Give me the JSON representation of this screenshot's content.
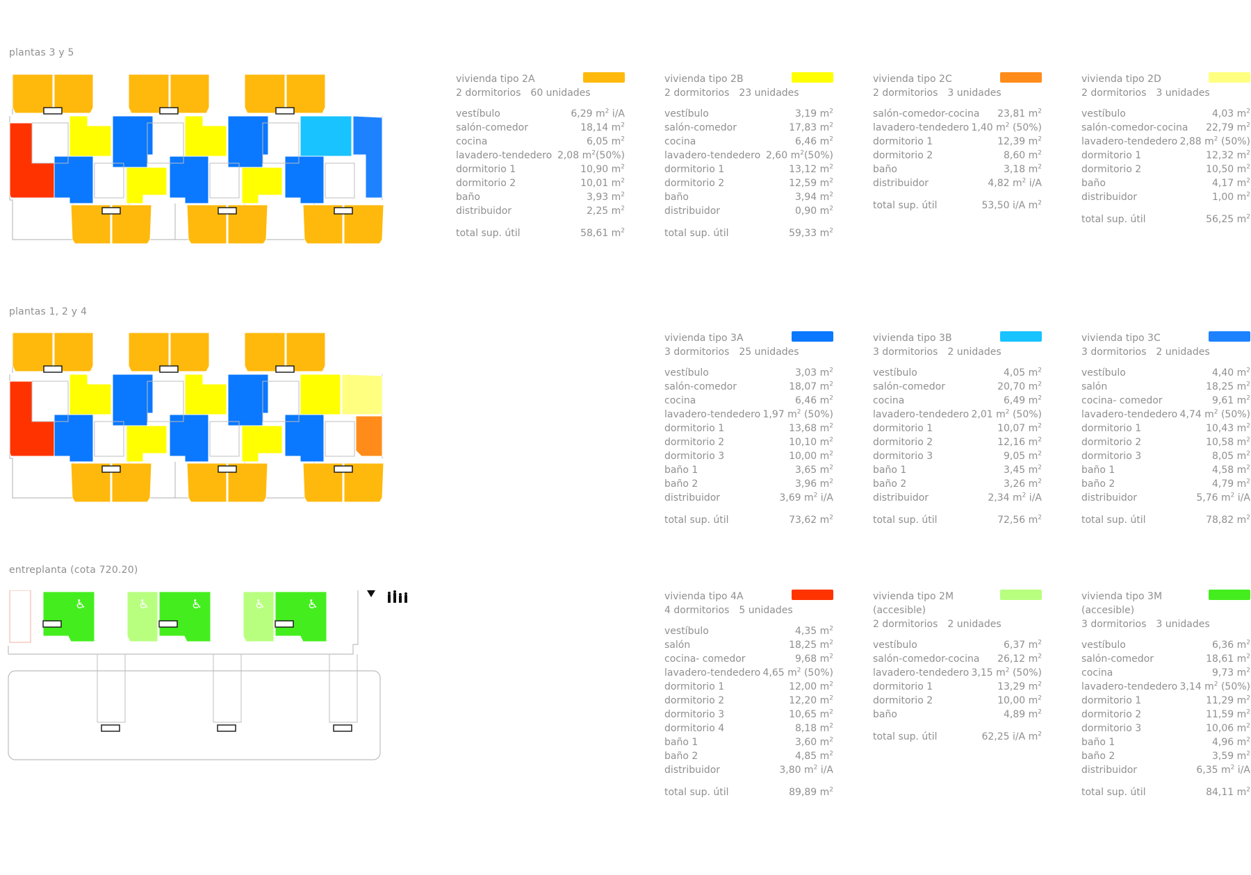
{
  "colors": {
    "type_2A": "#FFB90D",
    "type_2B": "#FFFF00",
    "type_2C": "#FF8C1A",
    "type_2D": "#FFFF80",
    "type_3A": "#0A78FF",
    "type_3B": "#19C3FF",
    "type_3C": "#1E82FF",
    "type_4A": "#FF3300",
    "type_2M": "#B8FF80",
    "type_3M": "#44EE1E",
    "outline": "#bdbdbd"
  },
  "icons": [
    "wheelchair-icon",
    "north-arrow-icon",
    "people-scale-icon"
  ],
  "floors": [
    {
      "label": "plantas 3 y 5"
    },
    {
      "label": "plantas 1, 2 y 4"
    },
    {
      "label": "entreplanta (cota 720.20)"
    }
  ],
  "units": [
    {
      "title": "vivienda tipo 2A",
      "subtitle": "",
      "bedrooms": "2 dormitorios",
      "count": "60 unidades",
      "color": "#FFB90D",
      "rooms": [
        {
          "name": "vestíbulo",
          "value": "6,29",
          "suffix": " i/A"
        },
        {
          "name": "salón-comedor",
          "value": "18,14",
          "suffix": ""
        },
        {
          "name": "cocina",
          "value": "6,05",
          "suffix": ""
        },
        {
          "name": "lavadero-tendedero",
          "value": "2,08",
          "suffix": "(50%)"
        },
        {
          "name": "dormitorio 1",
          "value": "10,90",
          "suffix": ""
        },
        {
          "name": "dormitorio 2",
          "value": "10,01",
          "suffix": ""
        },
        {
          "name": "baño",
          "value": "3,93",
          "suffix": ""
        },
        {
          "name": "distribuidor",
          "value": "2,25",
          "suffix": ""
        }
      ],
      "total_label": "total sup. útil",
      "total": "58,61"
    },
    {
      "title": "vivienda tipo 2B",
      "subtitle": "",
      "bedrooms": "2 dormitorios",
      "count": "23 unidades",
      "color": "#FFFF00",
      "rooms": [
        {
          "name": "vestíbulo",
          "value": "3,19",
          "suffix": ""
        },
        {
          "name": "salón-comedor",
          "value": "17,83",
          "suffix": ""
        },
        {
          "name": "cocina",
          "value": "6,46",
          "suffix": ""
        },
        {
          "name": "lavadero-tendedero",
          "value": "2,60",
          "suffix": "(50%)"
        },
        {
          "name": "dormitorio 1",
          "value": "13,12",
          "suffix": ""
        },
        {
          "name": "dormitorio 2",
          "value": "12,59",
          "suffix": ""
        },
        {
          "name": "baño",
          "value": "3,94",
          "suffix": ""
        },
        {
          "name": "distribuidor",
          "value": "0,90",
          "suffix": ""
        }
      ],
      "total_label": "total sup. útil",
      "total": "59,33"
    },
    {
      "title": "vivienda tipo 2C",
      "subtitle": "",
      "bedrooms": "2 dormitorios",
      "count": "3 unidades",
      "color": "#FF8C1A",
      "rooms": [
        {
          "name": "salón-comedor-cocina",
          "value": "23,81",
          "suffix": ""
        },
        {
          "name": "lavadero-tendedero",
          "value": "1,40",
          "suffix": " (50%)"
        },
        {
          "name": "dormitorio 1",
          "value": "12,39",
          "suffix": ""
        },
        {
          "name": "dormitorio 2",
          "value": "8,60",
          "suffix": ""
        },
        {
          "name": "baño",
          "value": "3,18",
          "suffix": ""
        },
        {
          "name": "distribuidor",
          "value": "4,82",
          "suffix": " i/A"
        }
      ],
      "total_label": "total sup. útil",
      "total": "53,50 i/A"
    },
    {
      "title": "vivienda tipo 2D",
      "subtitle": "",
      "bedrooms": "2 dormitorios",
      "count": "3 unidades",
      "color": "#FFFF80",
      "rooms": [
        {
          "name": "vestíbulo",
          "value": "4,03",
          "suffix": ""
        },
        {
          "name": "salón-comedor-cocina",
          "value": "22,79",
          "suffix": ""
        },
        {
          "name": "lavadero-tendedero",
          "value": "2,88",
          "suffix": " (50%)"
        },
        {
          "name": "dormitorio 1",
          "value": "12,32",
          "suffix": ""
        },
        {
          "name": "dormitorio 2",
          "value": "10,50",
          "suffix": ""
        },
        {
          "name": "baño",
          "value": "4,17",
          "suffix": ""
        },
        {
          "name": "distribuidor",
          "value": "1,00",
          "suffix": ""
        }
      ],
      "total_label": "total sup. útil",
      "total": "56,25"
    },
    {
      "title": "vivienda tipo 3A",
      "subtitle": "",
      "bedrooms": "3 dormitorios",
      "count": "25 unidades",
      "color": "#0A78FF",
      "rooms": [
        {
          "name": "vestíbulo",
          "value": "3,03",
          "suffix": ""
        },
        {
          "name": "salón-comedor",
          "value": "18,07",
          "suffix": ""
        },
        {
          "name": "cocina",
          "value": "6,46",
          "suffix": ""
        },
        {
          "name": "lavadero-tendedero",
          "value": "1,97",
          "suffix": " (50%)"
        },
        {
          "name": "dormitorio 1",
          "value": "13,68",
          "suffix": ""
        },
        {
          "name": "dormitorio 2",
          "value": "10,10",
          "suffix": ""
        },
        {
          "name": "dormitorio 3",
          "value": "10,00",
          "suffix": ""
        },
        {
          "name": "baño 1",
          "value": "3,65",
          "suffix": ""
        },
        {
          "name": "baño 2",
          "value": "3,96",
          "suffix": ""
        },
        {
          "name": "distribuidor",
          "value": "3,69",
          "suffix": " i/A"
        }
      ],
      "total_label": "total sup. útil",
      "total": "73,62"
    },
    {
      "title": "vivienda tipo 3B",
      "subtitle": "",
      "bedrooms": "3 dormitorios",
      "count": "2 unidades",
      "color": "#19C3FF",
      "rooms": [
        {
          "name": "vestíbulo",
          "value": "4,05",
          "suffix": ""
        },
        {
          "name": "salón-comedor",
          "value": "20,70",
          "suffix": ""
        },
        {
          "name": "cocina",
          "value": "6,49",
          "suffix": ""
        },
        {
          "name": "lavadero-tendedero",
          "value": "2,01",
          "suffix": " (50%)"
        },
        {
          "name": "dormitorio 1",
          "value": "10,07",
          "suffix": ""
        },
        {
          "name": "dormitorio 2",
          "value": "12,16",
          "suffix": ""
        },
        {
          "name": "dormitorio 3",
          "value": "9,05",
          "suffix": ""
        },
        {
          "name": "baño 1",
          "value": "3,45",
          "suffix": ""
        },
        {
          "name": "baño 2",
          "value": "3,26",
          "suffix": ""
        },
        {
          "name": "distribuidor",
          "value": "2,34",
          "suffix": " i/A"
        }
      ],
      "total_label": "total sup. útil",
      "total": "72,56"
    },
    {
      "title": "vivienda tipo 3C",
      "subtitle": "",
      "bedrooms": "3 dormitorios",
      "count": "2 unidades",
      "color": "#1E82FF",
      "rooms": [
        {
          "name": "vestíbulo",
          "value": "4,40",
          "suffix": ""
        },
        {
          "name": "salón",
          "value": "18,25",
          "suffix": ""
        },
        {
          "name": "cocina- comedor",
          "value": "9,61",
          "suffix": ""
        },
        {
          "name": "lavadero-tendedero",
          "value": "4,74",
          "suffix": " (50%)"
        },
        {
          "name": "dormitorio 1",
          "value": "10,43",
          "suffix": ""
        },
        {
          "name": "dormitorio 2",
          "value": "10,58",
          "suffix": ""
        },
        {
          "name": "dormitorio 3",
          "value": "8,05",
          "suffix": ""
        },
        {
          "name": "baño 1",
          "value": "4,58",
          "suffix": ""
        },
        {
          "name": "baño 2",
          "value": "4,79",
          "suffix": ""
        },
        {
          "name": "distribuidor",
          "value": "5,76",
          "suffix": " i/A"
        }
      ],
      "total_label": "total sup. útil",
      "total": "78,82"
    },
    {
      "title": "vivienda tipo 4A",
      "subtitle": "",
      "bedrooms": "4 dormitorios",
      "count": "5 unidades",
      "color": "#FF3300",
      "rooms": [
        {
          "name": "vestíbulo",
          "value": "4,35",
          "suffix": ""
        },
        {
          "name": "salón",
          "value": "18,25",
          "suffix": ""
        },
        {
          "name": "cocina- comedor",
          "value": "9,68",
          "suffix": ""
        },
        {
          "name": "lavadero-tendedero",
          "value": "4,65",
          "suffix": " (50%)"
        },
        {
          "name": "dormitorio 1",
          "value": "12,00",
          "suffix": ""
        },
        {
          "name": "dormitorio 2",
          "value": "12,20",
          "suffix": ""
        },
        {
          "name": "dormitorio 3",
          "value": "10,65",
          "suffix": ""
        },
        {
          "name": "dormitorio 4",
          "value": "8,18",
          "suffix": ""
        },
        {
          "name": "baño 1",
          "value": "3,60",
          "suffix": ""
        },
        {
          "name": "baño 2",
          "value": "4,85",
          "suffix": ""
        },
        {
          "name": "distribuidor",
          "value": "3,80",
          "suffix": " i/A"
        }
      ],
      "total_label": "total sup. útil",
      "total": "89,89"
    },
    {
      "title": "vivienda tipo 2M",
      "subtitle": "(accesible)",
      "bedrooms": "2 dormitorios",
      "count": "2 unidades",
      "color": "#B8FF80",
      "rooms": [
        {
          "name": "vestíbulo",
          "value": "6,37",
          "suffix": ""
        },
        {
          "name": "salón-comedor-cocina",
          "value": "26,12",
          "suffix": ""
        },
        {
          "name": "lavadero-tendedero",
          "value": "3,15",
          "suffix": " (50%)"
        },
        {
          "name": "dormitorio 1",
          "value": "13,29",
          "suffix": ""
        },
        {
          "name": "dormitorio 2",
          "value": "10,00",
          "suffix": ""
        },
        {
          "name": "baño",
          "value": "4,89",
          "suffix": ""
        }
      ],
      "total_label": "total sup. útil",
      "total": "62,25 i/A"
    },
    {
      "title": "vivienda tipo 3M",
      "subtitle": "(accesible)",
      "bedrooms": "3 dormitorios",
      "count": "3 unidades",
      "color": "#44EE1E",
      "rooms": [
        {
          "name": "vestíbulo",
          "value": "6,36",
          "suffix": ""
        },
        {
          "name": "salón-comedor",
          "value": "18,61",
          "suffix": ""
        },
        {
          "name": "cocina",
          "value": "9,73",
          "suffix": ""
        },
        {
          "name": "lavadero-tendedero",
          "value": "3,14",
          "suffix": " (50%)"
        },
        {
          "name": "dormitorio 1",
          "value": "11,29",
          "suffix": ""
        },
        {
          "name": "dormitorio 2",
          "value": "11,59",
          "suffix": ""
        },
        {
          "name": "dormitorio 3",
          "value": "10,06",
          "suffix": ""
        },
        {
          "name": "baño 1",
          "value": "4,96",
          "suffix": ""
        },
        {
          "name": "baño 2",
          "value": "3,59",
          "suffix": ""
        },
        {
          "name": "distribuidor",
          "value": "6,35",
          "suffix": " i/A"
        }
      ],
      "total_label": "total sup. útil",
      "total": "84,11"
    }
  ]
}
